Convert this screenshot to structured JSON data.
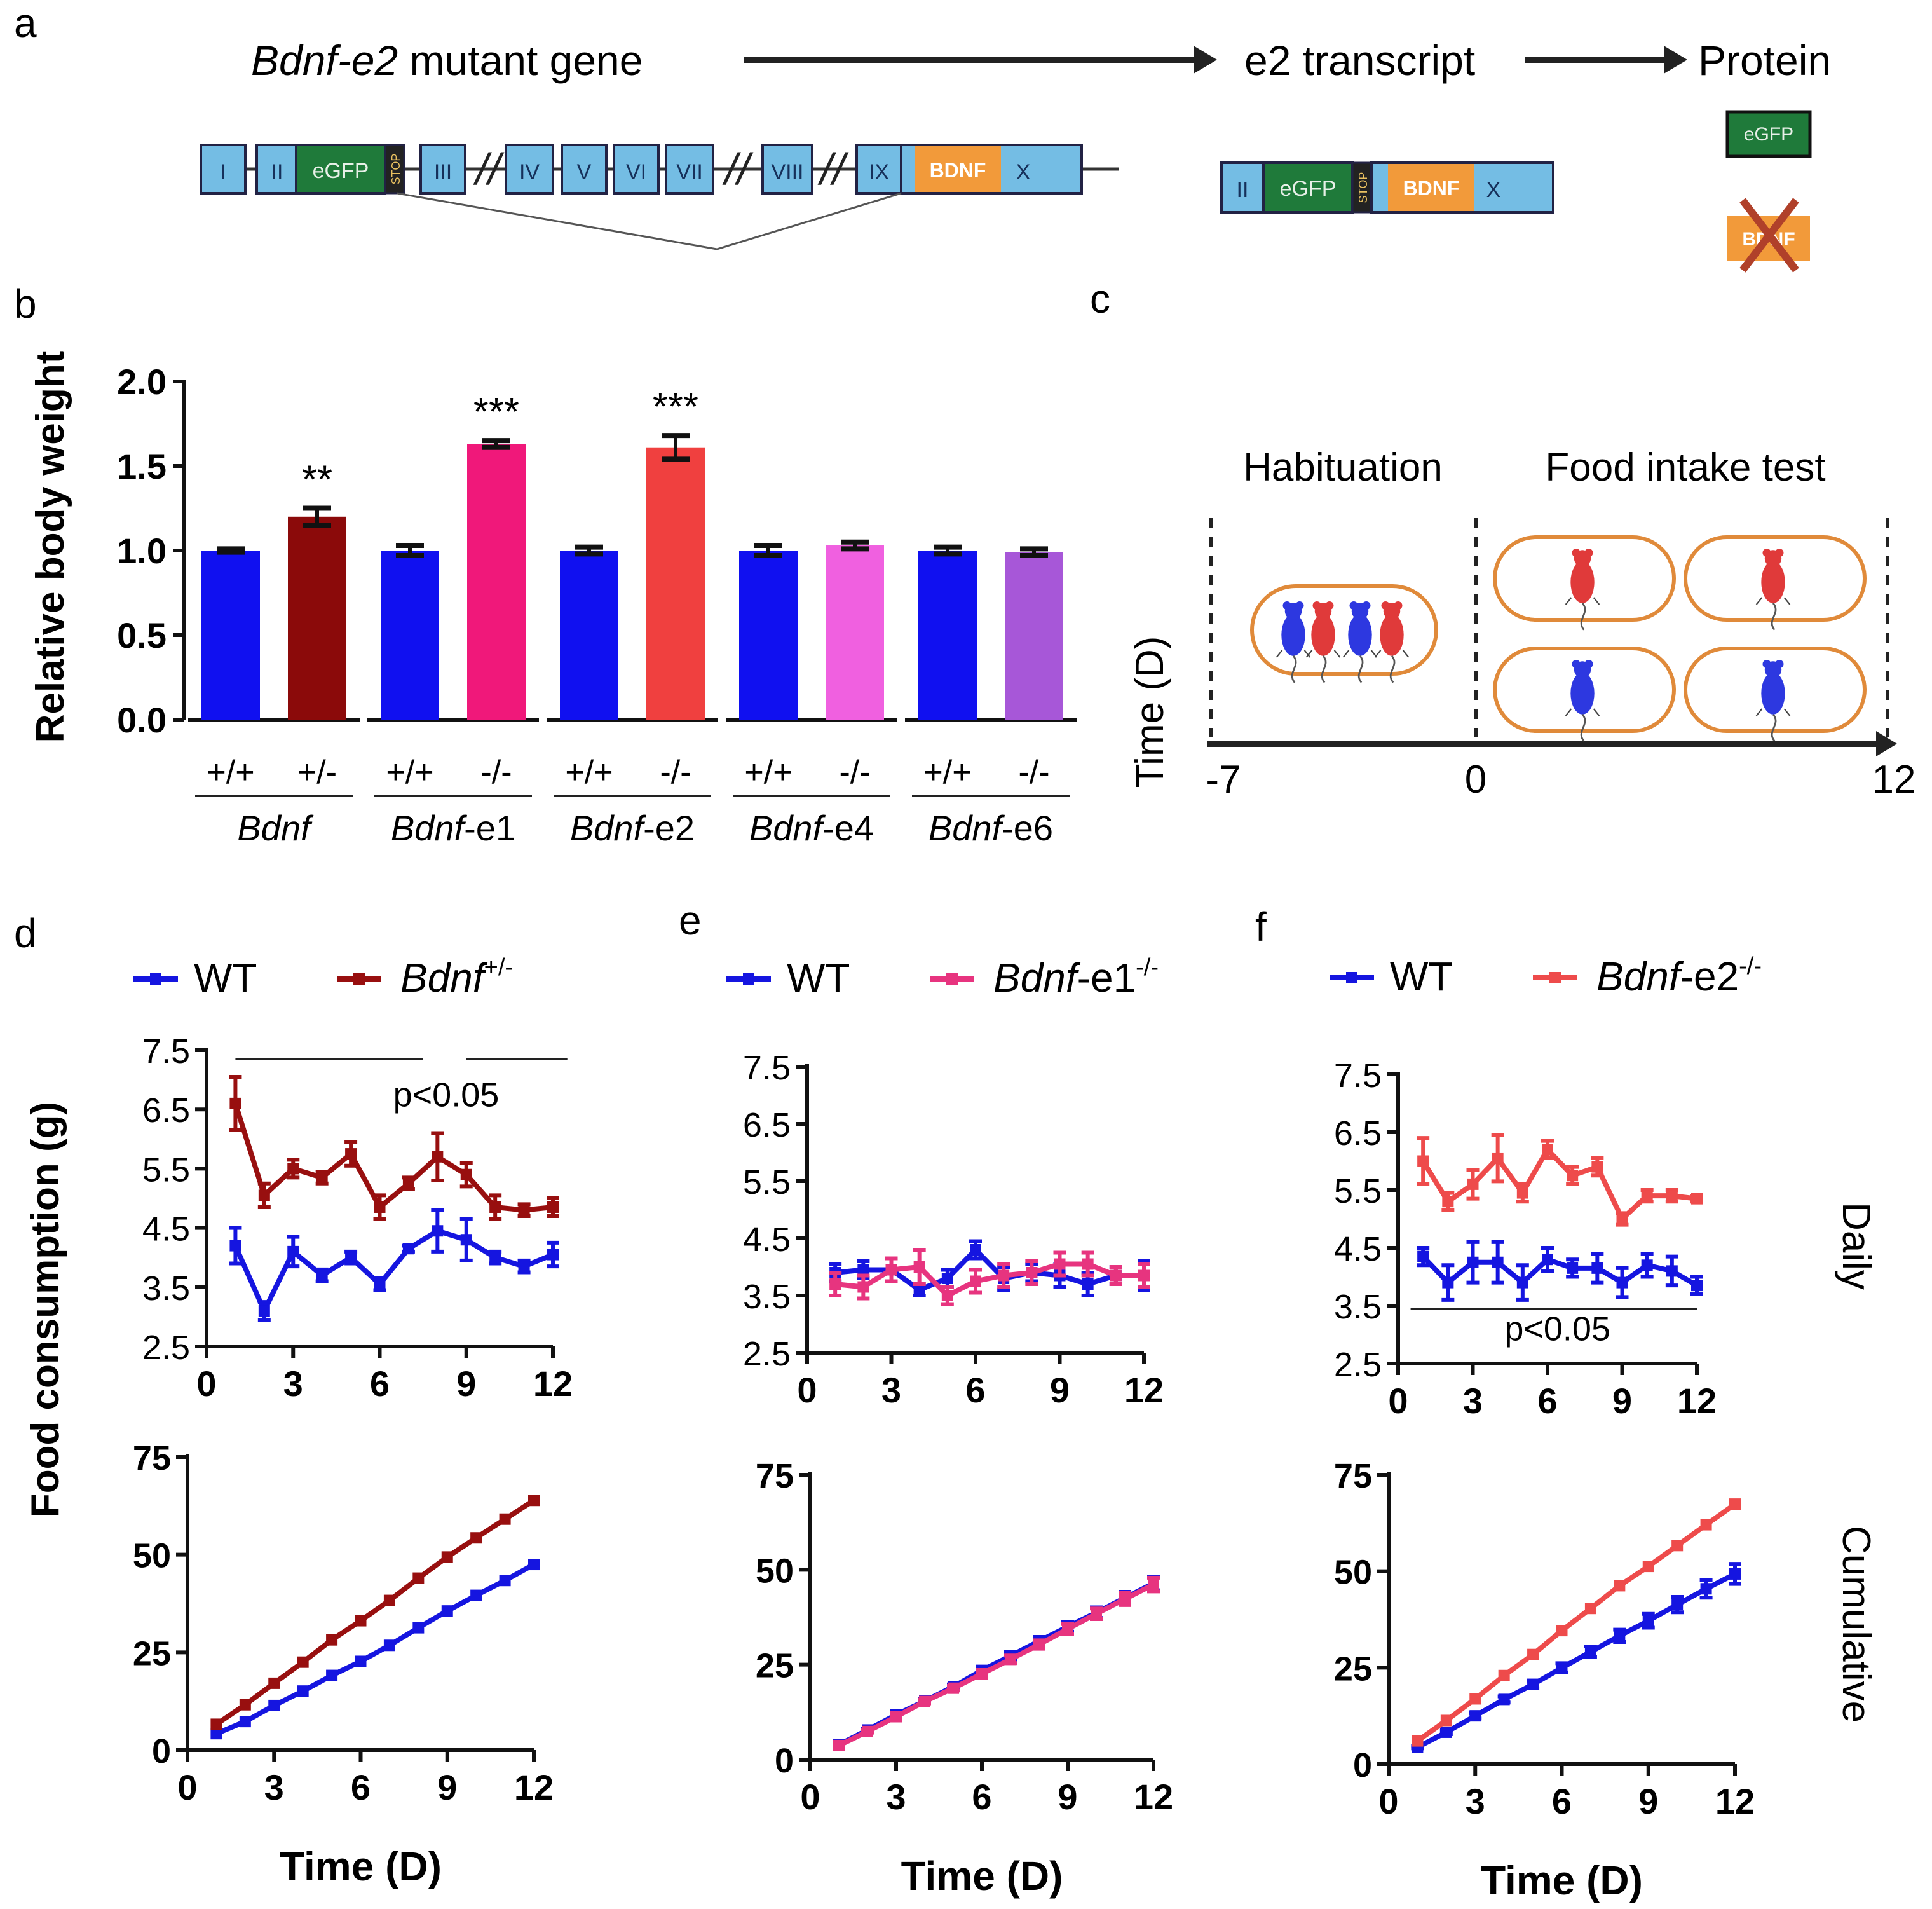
{
  "panel_a": {
    "letter": "a",
    "gene_label_italic": "Bdnf-e2",
    "gene_label_rest": " mutant gene",
    "transcript_label": "e2 transcript",
    "protein_label": "Protein",
    "exons": [
      "I",
      "II",
      "III",
      "IV",
      "V",
      "VI",
      "VII",
      "VIII",
      "IX",
      "X"
    ],
    "egfp": "eGFP",
    "stop": "STOP",
    "bdnf": "BDNF",
    "transcript_exons": [
      "II",
      "X"
    ],
    "protein_egfp": "eGFP",
    "protein_bdnf": "BDNF",
    "colors": {
      "exon": "#74bde4",
      "egfp": "#1f7a3a",
      "bdnf": "#f29a3a",
      "stop": "#222222",
      "cross": "#b0402a"
    }
  },
  "panel_b": {
    "letter": "b",
    "chart_data": {
      "type": "bar",
      "title": "",
      "ylabel": "Relative body weight",
      "ylim": [
        0,
        2.0
      ],
      "yticks": [
        "0.0",
        "0.5",
        "1.0",
        "1.5",
        "2.0"
      ],
      "groups": [
        {
          "gene": "Bdnf",
          "genotypes": [
            "+/+",
            "+/-"
          ],
          "values": [
            1.0,
            1.2
          ],
          "errors": [
            0.01,
            0.05
          ],
          "colors": [
            "#1010f0",
            "#8b0a0a"
          ],
          "significance": [
            "",
            "**"
          ]
        },
        {
          "gene": "Bdnf-e1",
          "genotypes": [
            "+/+",
            "-/-"
          ],
          "values": [
            1.0,
            1.63
          ],
          "errors": [
            0.03,
            0.02
          ],
          "colors": [
            "#1010f0",
            "#f0187a"
          ],
          "significance": [
            "",
            "***"
          ]
        },
        {
          "gene": "Bdnf-e2",
          "genotypes": [
            "+/+",
            "-/-"
          ],
          "values": [
            1.0,
            1.61
          ],
          "errors": [
            0.02,
            0.07
          ],
          "colors": [
            "#1010f0",
            "#f0403f"
          ],
          "significance": [
            "",
            "***"
          ]
        },
        {
          "gene": "Bdnf-e4",
          "genotypes": [
            "+/+",
            "-/-"
          ],
          "values": [
            1.0,
            1.03
          ],
          "errors": [
            0.03,
            0.02
          ],
          "colors": [
            "#1010f0",
            "#f060e0"
          ],
          "significance": [
            "",
            ""
          ]
        },
        {
          "gene": "Bdnf-e6",
          "genotypes": [
            "+/+",
            "-/-"
          ],
          "values": [
            1.0,
            0.99
          ],
          "errors": [
            0.02,
            0.02
          ],
          "colors": [
            "#1010f0",
            "#a757d8"
          ],
          "significance": [
            "",
            ""
          ]
        }
      ],
      "gene_labels": [
        {
          "italic": "Bdnf",
          "rest": ""
        },
        {
          "italic": "Bdnf",
          "rest": "-e1"
        },
        {
          "italic": "Bdnf",
          "rest": "-e2"
        },
        {
          "italic": "Bdnf",
          "rest": "-e4"
        },
        {
          "italic": "Bdnf",
          "rest": "-e6"
        }
      ]
    }
  },
  "panel_c": {
    "letter": "c",
    "habituation": "Habituation",
    "food_test": "Food intake test",
    "axis_label": "Time (D)",
    "ticks": [
      "-7",
      "0",
      "12"
    ],
    "colors": {
      "cage": "#e08a3a",
      "wt_mouse": "#2d38e0",
      "ko_mouse": "#e03a3a"
    }
  },
  "panels_def": [
    {
      "letter": "d",
      "wt": "WT",
      "ko_italic": "Bdnf",
      "ko_rest": "",
      "ko_sup": "+/-"
    },
    {
      "letter": "e",
      "wt": "WT",
      "ko_italic": "Bdnf",
      "ko_rest": "-e1",
      "ko_sup": "-/-"
    },
    {
      "letter": "f",
      "wt": "WT",
      "ko_italic": "Bdnf",
      "ko_rest": "-e2",
      "ko_sup": "-/-"
    }
  ],
  "shared_labels": {
    "ylabel": "Food consumption (g)",
    "xlabel": "Time (D)",
    "daily": "Daily",
    "cumulative": "Cumulative",
    "pvalue": "p<0.05"
  },
  "chart_data": [
    {
      "type": "line",
      "panel": "d",
      "kind": "daily",
      "x": [
        1,
        2,
        3,
        4,
        5,
        6,
        7,
        8,
        9,
        10,
        11,
        12
      ],
      "xlim": [
        0,
        12
      ],
      "xticks": [
        0,
        3,
        6,
        9,
        12
      ],
      "ylim": [
        2.5,
        7.5
      ],
      "yticks": [
        "2.5",
        "3.5",
        "4.5",
        "5.5",
        "6.5",
        "7.5"
      ],
      "annotation": "p<0.05",
      "series": [
        {
          "name": "WT",
          "color": "#1515e0",
          "values": [
            4.2,
            3.1,
            4.1,
            3.7,
            4.0,
            3.55,
            4.15,
            4.45,
            4.3,
            4.0,
            3.85,
            4.05
          ],
          "errors": [
            0.3,
            0.15,
            0.25,
            0.1,
            0.1,
            0.1,
            0.05,
            0.35,
            0.35,
            0.1,
            0.1,
            0.2
          ]
        },
        {
          "name": "Bdnf+/-",
          "color": "#980f0f",
          "values": [
            6.6,
            5.05,
            5.5,
            5.35,
            5.75,
            4.85,
            5.25,
            5.7,
            5.4,
            4.85,
            4.8,
            4.85
          ],
          "errors": [
            0.45,
            0.2,
            0.15,
            0.1,
            0.2,
            0.2,
            0.1,
            0.4,
            0.2,
            0.2,
            0.1,
            0.15
          ]
        }
      ]
    },
    {
      "type": "line",
      "panel": "d",
      "kind": "cumulative",
      "x": [
        1,
        2,
        3,
        4,
        5,
        6,
        7,
        8,
        9,
        10,
        11,
        12
      ],
      "xlim": [
        0,
        12
      ],
      "xticks": [
        0,
        3,
        6,
        9,
        12
      ],
      "ylim": [
        0,
        75
      ],
      "yticks": [
        "0",
        "25",
        "50",
        "75"
      ],
      "series": [
        {
          "name": "WT",
          "color": "#1515e0",
          "values": [
            4.2,
            7.3,
            11.4,
            15.1,
            19.1,
            22.7,
            26.8,
            31.3,
            35.6,
            39.6,
            43.4,
            47.5
          ],
          "errors": []
        },
        {
          "name": "Bdnf+/-",
          "color": "#980f0f",
          "values": [
            6.6,
            11.6,
            17.1,
            22.5,
            28.2,
            33.1,
            38.3,
            44.0,
            49.4,
            54.3,
            59.1,
            63.9
          ],
          "errors": []
        }
      ]
    },
    {
      "type": "line",
      "panel": "e",
      "kind": "daily",
      "x": [
        1,
        2,
        3,
        4,
        5,
        6,
        7,
        8,
        9,
        10,
        11,
        12
      ],
      "xlim": [
        0,
        12
      ],
      "xticks": [
        0,
        3,
        6,
        9,
        12
      ],
      "ylim": [
        2.5,
        7.5
      ],
      "yticks": [
        "2.5",
        "3.5",
        "4.5",
        "5.5",
        "6.5",
        "7.5"
      ],
      "series": [
        {
          "name": "WT",
          "color": "#1515e0",
          "values": [
            3.9,
            3.95,
            3.95,
            3.6,
            3.8,
            4.3,
            3.8,
            3.9,
            3.85,
            3.7,
            3.85,
            3.85
          ],
          "errors": [
            0.15,
            0.15,
            0.2,
            0.1,
            0.15,
            0.15,
            0.2,
            0.15,
            0.2,
            0.2,
            0.15,
            0.25
          ]
        },
        {
          "name": "Bdnf-e1-/-",
          "color": "#e7347f",
          "values": [
            3.7,
            3.65,
            3.95,
            4.0,
            3.5,
            3.75,
            3.85,
            3.9,
            4.05,
            4.05,
            3.85,
            3.85
          ],
          "errors": [
            0.2,
            0.2,
            0.2,
            0.3,
            0.15,
            0.2,
            0.2,
            0.2,
            0.2,
            0.2,
            0.15,
            0.2
          ]
        }
      ]
    },
    {
      "type": "line",
      "panel": "e",
      "kind": "cumulative",
      "x": [
        1,
        2,
        3,
        4,
        5,
        6,
        7,
        8,
        9,
        10,
        11,
        12
      ],
      "xlim": [
        0,
        12
      ],
      "xticks": [
        0,
        3,
        6,
        9,
        12
      ],
      "ylim": [
        0,
        75
      ],
      "yticks": [
        "0",
        "25",
        "50",
        "75"
      ],
      "series": [
        {
          "name": "WT",
          "color": "#1515e0",
          "values": [
            3.9,
            7.8,
            11.8,
            15.4,
            19.2,
            23.5,
            27.3,
            31.2,
            35.0,
            38.7,
            42.6,
            46.4
          ],
          "errors": [
            0.2,
            0.3,
            0.4,
            0.5,
            0.6,
            0.8,
            1.0,
            1.1,
            1.3,
            1.4,
            1.6,
            1.8
          ]
        },
        {
          "name": "Bdnf-e1-/-",
          "color": "#e7347f",
          "values": [
            3.7,
            7.4,
            11.3,
            15.3,
            18.8,
            22.6,
            26.4,
            30.3,
            34.4,
            38.4,
            42.3,
            46.1
          ],
          "errors": [
            0.2,
            0.3,
            0.4,
            0.5,
            0.6,
            0.8,
            1.0,
            1.1,
            1.3,
            1.4,
            1.6,
            1.8
          ]
        }
      ]
    },
    {
      "type": "line",
      "panel": "f",
      "kind": "daily",
      "x": [
        1,
        2,
        3,
        4,
        5,
        6,
        7,
        8,
        9,
        10,
        11,
        12
      ],
      "xlim": [
        0,
        12
      ],
      "xticks": [
        0,
        3,
        6,
        9,
        12
      ],
      "ylim": [
        2.5,
        7.5
      ],
      "yticks": [
        "2.5",
        "3.5",
        "4.5",
        "5.5",
        "6.5",
        "7.5"
      ],
      "annotation": "p<0.05",
      "series": [
        {
          "name": "WT",
          "color": "#1515e0",
          "values": [
            4.35,
            3.9,
            4.25,
            4.25,
            3.9,
            4.3,
            4.15,
            4.15,
            3.9,
            4.2,
            4.1,
            3.85
          ],
          "errors": [
            0.15,
            0.3,
            0.35,
            0.35,
            0.3,
            0.2,
            0.15,
            0.25,
            0.25,
            0.2,
            0.25,
            0.15
          ]
        },
        {
          "name": "Bdnf-e2-/-",
          "color": "#ee4b4b",
          "values": [
            6.0,
            5.3,
            5.6,
            6.05,
            5.45,
            6.2,
            5.75,
            5.9,
            5.0,
            5.4,
            5.4,
            5.35
          ],
          "errors": [
            0.4,
            0.15,
            0.25,
            0.4,
            0.15,
            0.15,
            0.15,
            0.15,
            0.1,
            0.1,
            0.1,
            0.05
          ]
        }
      ]
    },
    {
      "type": "line",
      "panel": "f",
      "kind": "cumulative",
      "x": [
        1,
        2,
        3,
        4,
        5,
        6,
        7,
        8,
        9,
        10,
        11,
        12
      ],
      "xlim": [
        0,
        12
      ],
      "xticks": [
        0,
        3,
        6,
        9,
        12
      ],
      "ylim": [
        0,
        75
      ],
      "yticks": [
        "0",
        "25",
        "50",
        "75"
      ],
      "series": [
        {
          "name": "WT",
          "color": "#1515e0",
          "values": [
            4.35,
            8.25,
            12.5,
            16.75,
            20.65,
            24.95,
            29.1,
            33.25,
            37.15,
            41.35,
            45.45,
            49.3
          ],
          "errors": [
            0.3,
            0.5,
            0.7,
            0.8,
            1.0,
            1.2,
            1.4,
            1.6,
            1.8,
            2.0,
            2.3,
            2.6
          ]
        },
        {
          "name": "Bdnf-e2-/-",
          "color": "#ee4b4b",
          "values": [
            6.0,
            11.3,
            16.9,
            22.95,
            28.4,
            34.6,
            40.35,
            46.25,
            51.25,
            56.65,
            62.05,
            67.4
          ],
          "errors": []
        }
      ]
    }
  ]
}
